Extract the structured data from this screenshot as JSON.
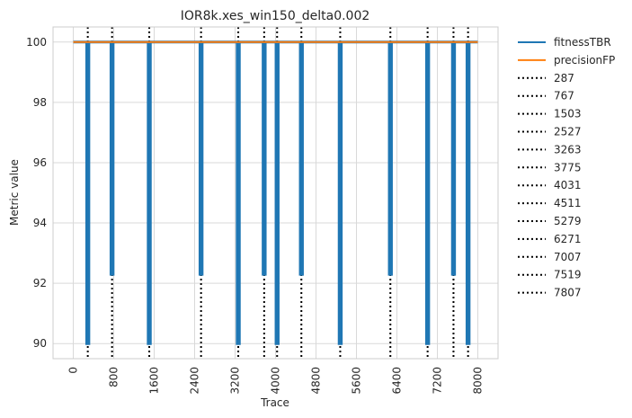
{
  "chart_data": {
    "type": "line",
    "title": "IOR8k.xes_win150_delta0.002",
    "xlabel": "Trace",
    "ylabel": "Metric value",
    "xlim": [
      -400,
      8400
    ],
    "ylim": [
      89.5,
      100.5
    ],
    "x_ticks": [
      0,
      800,
      1600,
      2400,
      3200,
      4000,
      4800,
      5600,
      6400,
      7200,
      8000
    ],
    "x_tick_labels": [
      "0",
      "800",
      "1600",
      "2400",
      "3200",
      "4000",
      "4800",
      "5600",
      "6400",
      "7200",
      "8000"
    ],
    "y_ticks": [
      90,
      92,
      94,
      96,
      98,
      100
    ],
    "y_tick_labels": [
      "90",
      "92",
      "94",
      "96",
      "98",
      "100"
    ],
    "grid": true,
    "legend_position": "outside-right",
    "series": [
      {
        "name": "fitnessTBR",
        "color": "#1f77b4",
        "x_range": [
          0,
          8000
        ],
        "baseline": 100,
        "dips": [
          {
            "x": 287,
            "min": 90.0
          },
          {
            "x": 767,
            "min": 92.3
          },
          {
            "x": 1503,
            "min": 90.0
          },
          {
            "x": 2527,
            "min": 92.3
          },
          {
            "x": 3263,
            "min": 90.0
          },
          {
            "x": 3775,
            "min": 92.3
          },
          {
            "x": 4031,
            "min": 90.0
          },
          {
            "x": 4511,
            "min": 92.3
          },
          {
            "x": 5279,
            "min": 90.0
          },
          {
            "x": 6271,
            "min": 92.3
          },
          {
            "x": 7007,
            "min": 90.0
          },
          {
            "x": 7519,
            "min": 92.3
          },
          {
            "x": 7807,
            "min": 90.0
          }
        ]
      },
      {
        "name": "precisionFP",
        "color": "#ff7f0e",
        "x": [
          0,
          8000
        ],
        "values": [
          100,
          100
        ]
      }
    ],
    "vlines": [
      {
        "x": 287,
        "label": "287"
      },
      {
        "x": 767,
        "label": "767"
      },
      {
        "x": 1503,
        "label": "1503"
      },
      {
        "x": 2527,
        "label": "2527"
      },
      {
        "x": 3263,
        "label": "3263"
      },
      {
        "x": 3775,
        "label": "3775"
      },
      {
        "x": 4031,
        "label": "4031"
      },
      {
        "x": 4511,
        "label": "4511"
      },
      {
        "x": 5279,
        "label": "5279"
      },
      {
        "x": 6271,
        "label": "6271"
      },
      {
        "x": 7007,
        "label": "7007"
      },
      {
        "x": 7519,
        "label": "7519"
      },
      {
        "x": 7807,
        "label": "7807"
      }
    ]
  }
}
